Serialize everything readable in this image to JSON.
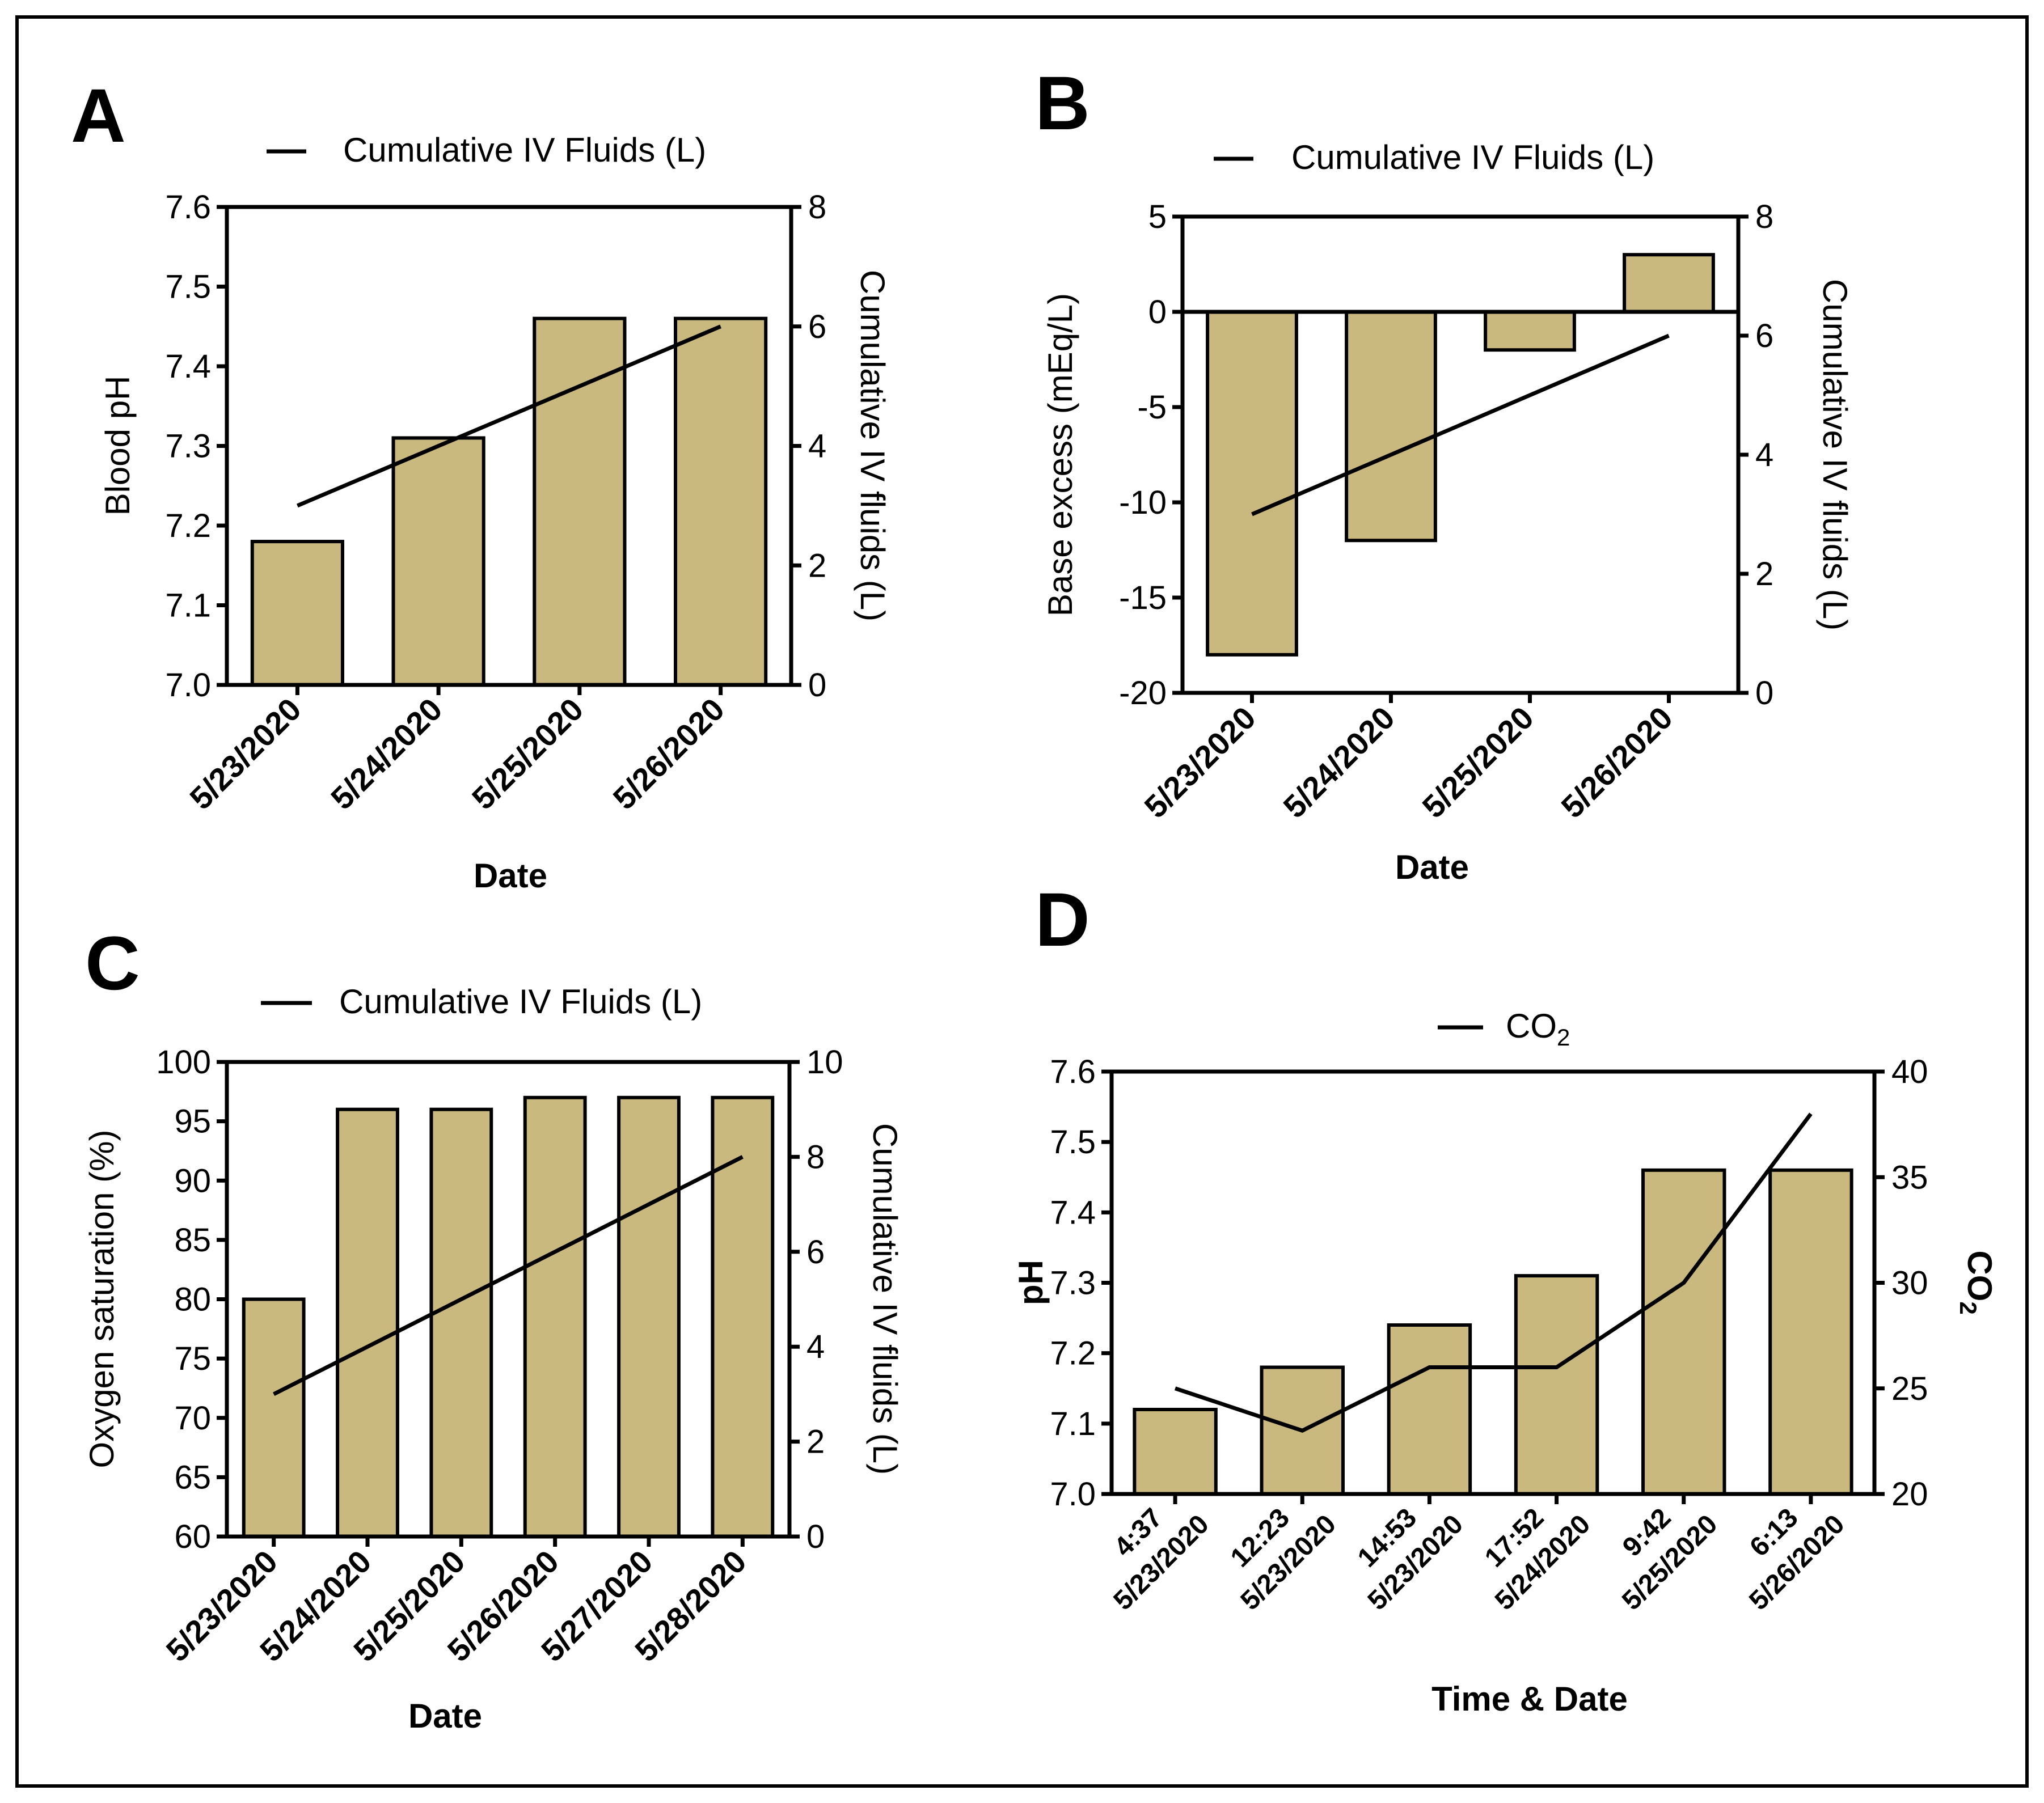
{
  "chart_data": [
    {
      "id": "A",
      "type": "bar",
      "panel_label": "A",
      "legend": "Cumulative IV Fluids (L)",
      "xlabel": "Date",
      "ylabel": "Blood pH",
      "y2label": "Cumulative  IV fluids (L)",
      "categories": [
        "5/23/2020",
        "5/24/2020",
        "5/25/2020",
        "5/26/2020"
      ],
      "ylim": [
        7.0,
        7.6
      ],
      "yticks": [
        "7.0",
        "7.1",
        "7.2",
        "7.3",
        "7.4",
        "7.5",
        "7.6"
      ],
      "y2lim": [
        0,
        8
      ],
      "y2ticks": [
        "0",
        "2",
        "4",
        "6",
        "8"
      ],
      "series": [
        {
          "name": "Blood pH",
          "kind": "bar",
          "values": [
            7.18,
            7.31,
            7.46,
            7.46
          ]
        },
        {
          "name": "Cumulative IV Fluids (L)",
          "kind": "line",
          "axis": "right",
          "values": [
            3,
            4,
            5,
            6
          ]
        }
      ]
    },
    {
      "id": "B",
      "type": "bar",
      "panel_label": "B",
      "legend": "Cumulative IV Fluids (L)",
      "xlabel": "Date",
      "ylabel": "Base excess (mEq/L)",
      "y2label": "Cumulative  IV fluids (L)",
      "categories": [
        "5/23/2020",
        "5/24/2020",
        "5/25/2020",
        "5/26/2020"
      ],
      "ylim": [
        -20,
        5
      ],
      "yticks": [
        "-20",
        "-15",
        "-10",
        "-5",
        "0",
        "5"
      ],
      "y2lim": [
        0,
        8
      ],
      "y2ticks": [
        "0",
        "2",
        "4",
        "6",
        "8"
      ],
      "series": [
        {
          "name": "Base excess (mEq/L)",
          "kind": "bar",
          "values": [
            -18,
            -12,
            -2,
            3
          ]
        },
        {
          "name": "Cumulative IV Fluids (L)",
          "kind": "line",
          "axis": "right",
          "values": [
            3,
            4,
            5,
            6
          ]
        }
      ]
    },
    {
      "id": "C",
      "type": "bar",
      "panel_label": "C",
      "legend": "Cumulative IV Fluids (L)",
      "xlabel": "Date",
      "ylabel": "Oxygen saturation (%)",
      "y2label": "Cumulative  IV fluids (L)",
      "categories": [
        "5/23/2020",
        "5/24/2020",
        "5/25/2020",
        "5/26/2020",
        "5/27/2020",
        "5/28/2020"
      ],
      "ylim": [
        60,
        100
      ],
      "yticks": [
        "60",
        "65",
        "70",
        "75",
        "80",
        "85",
        "90",
        "95",
        "100"
      ],
      "y2lim": [
        0,
        10
      ],
      "y2ticks": [
        "0",
        "2",
        "4",
        "6",
        "8",
        "10"
      ],
      "series": [
        {
          "name": "Oxygen saturation (%)",
          "kind": "bar",
          "values": [
            80,
            96,
            96,
            97,
            97,
            97
          ]
        },
        {
          "name": "Cumulative IV Fluids (L)",
          "kind": "line",
          "axis": "right",
          "values": [
            3,
            4,
            5,
            6,
            7,
            8
          ]
        }
      ]
    },
    {
      "id": "D",
      "type": "bar",
      "panel_label": "D",
      "legend": "CO",
      "legend_sub": "2",
      "xlabel": "Time & Date",
      "ylabel": "pH",
      "y2label": "CO",
      "y2label_sub": "2",
      "categories": [
        [
          "4:37",
          "5/23/2020"
        ],
        [
          "12:23",
          "5/23/2020"
        ],
        [
          "14:53",
          "5/23/2020"
        ],
        [
          "17:52",
          "5/24/2020"
        ],
        [
          "9:42",
          "5/25/2020"
        ],
        [
          "6:13",
          "5/26/2020"
        ]
      ],
      "ylim": [
        7.0,
        7.6
      ],
      "yticks": [
        "7.0",
        "7.1",
        "7.2",
        "7.3",
        "7.4",
        "7.5",
        "7.6"
      ],
      "y2lim": [
        20,
        40
      ],
      "y2ticks": [
        "20",
        "25",
        "30",
        "35",
        "40"
      ],
      "series": [
        {
          "name": "pH",
          "kind": "bar",
          "values": [
            7.12,
            7.18,
            7.24,
            7.31,
            7.46,
            7.46
          ]
        },
        {
          "name": "CO2",
          "kind": "line",
          "axis": "right",
          "values": [
            25,
            23,
            26,
            26,
            30,
            38
          ]
        }
      ]
    }
  ]
}
